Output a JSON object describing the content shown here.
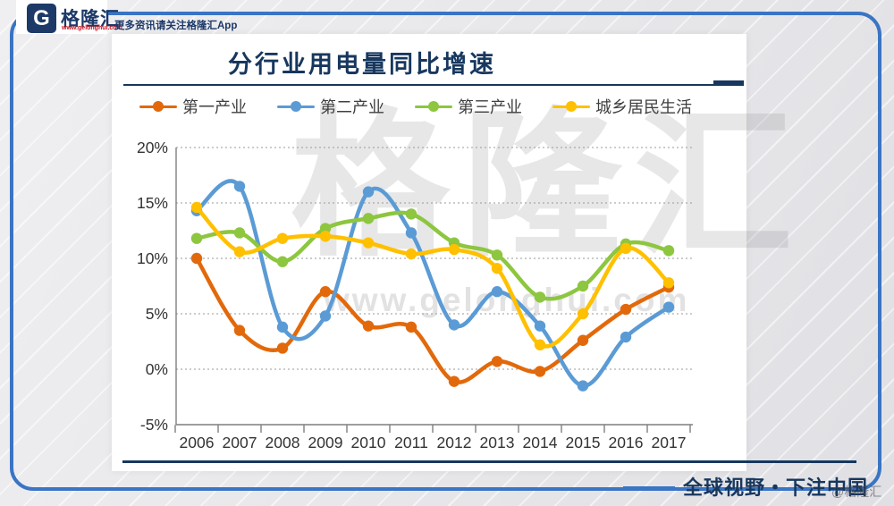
{
  "header": {
    "logo_letter": "G",
    "logo_name": "格隆汇",
    "logo_url": "www.gelonghui.com",
    "tagline": "更多资讯请关注格隆汇App"
  },
  "chart_data": {
    "type": "line",
    "title": "分行业用电量同比增速",
    "x": [
      2006,
      2007,
      2008,
      2009,
      2010,
      2011,
      2012,
      2013,
      2014,
      2015,
      2016,
      2017
    ],
    "series": [
      {
        "name": "第一产业",
        "color": "#E2690B",
        "values": [
          10.0,
          3.5,
          1.9,
          7.0,
          3.9,
          3.8,
          -1.1,
          0.7,
          -0.2,
          2.6,
          5.4,
          7.4
        ]
      },
      {
        "name": "第二产业",
        "color": "#5B9BD5",
        "values": [
          14.3,
          16.5,
          3.8,
          4.8,
          16.0,
          12.3,
          4.0,
          7.0,
          3.9,
          -1.5,
          2.9,
          5.6
        ]
      },
      {
        "name": "第三产业",
        "color": "#8DC63F",
        "values": [
          11.8,
          12.3,
          9.7,
          12.7,
          13.6,
          14.0,
          11.4,
          10.3,
          6.5,
          7.5,
          11.3,
          10.7
        ]
      },
      {
        "name": "城乡居民生活",
        "color": "#FFC000",
        "values": [
          14.6,
          10.6,
          11.8,
          12.0,
          11.4,
          10.4,
          10.8,
          9.1,
          2.2,
          5.0,
          10.9,
          7.8
        ]
      }
    ],
    "ylim": [
      -5,
      20
    ],
    "yticks": [
      {
        "label": "20%",
        "value": 20
      },
      {
        "label": "15%",
        "value": 15
      },
      {
        "label": "10%",
        "value": 10
      },
      {
        "label": "5%",
        "value": 5
      },
      {
        "label": "0%",
        "value": 0
      },
      {
        "label": "-5%",
        "value": -5
      }
    ],
    "grid": "horizontal dotted",
    "legend_position": "top"
  },
  "watermark": {
    "brand": "格隆汇",
    "url": "www.gelonghui.com"
  },
  "footer": {
    "slogan": "全球视野・下注中国",
    "stamp": "@格隆汇"
  },
  "colors": {
    "navy": "#17375E",
    "frame_blue": "#3A74C4",
    "logo_red": "#C8111C",
    "axis_gray": "#7F7F7F"
  }
}
